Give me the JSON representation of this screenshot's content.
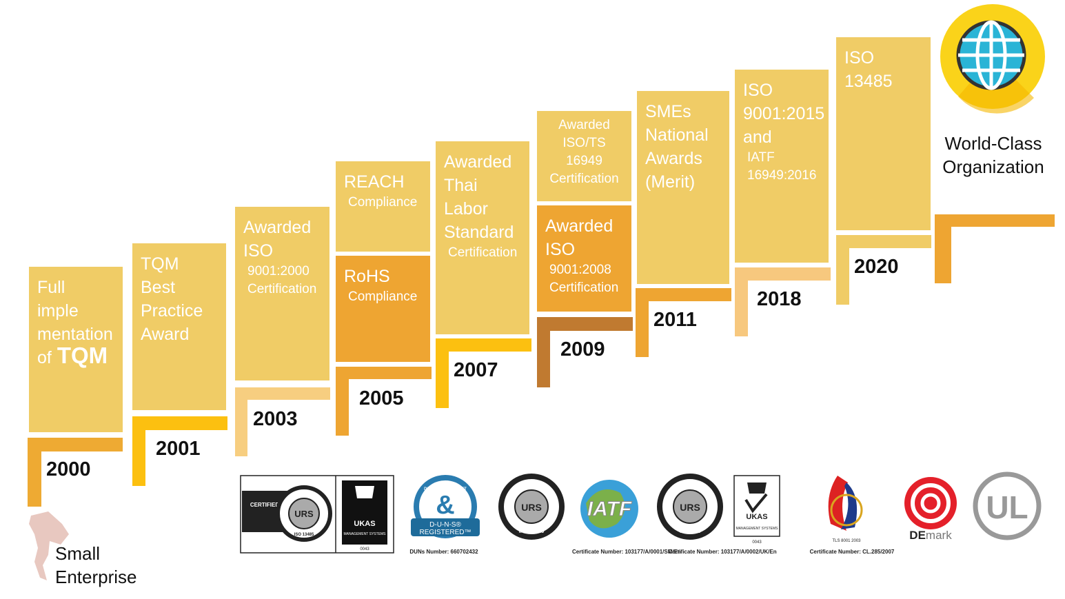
{
  "steps": [
    {
      "year": "2000",
      "boxes": [
        {
          "lines": [
            "Full",
            "imple",
            "mentation",
            "of"
          ],
          "tail": "TQM"
        }
      ]
    },
    {
      "year": "2001",
      "boxes": [
        {
          "lines": [
            "TQM",
            "Best",
            "Practice",
            "Award"
          ]
        }
      ]
    },
    {
      "year": "2003",
      "boxes": [
        {
          "lines": [
            "Awarded",
            "ISO"
          ],
          "sublines": [
            "9001:2000",
            "Certification"
          ]
        }
      ]
    },
    {
      "year": "2005",
      "boxes": [
        {
          "lines": [
            "REACH"
          ],
          "sublines": [
            "Compliance"
          ]
        },
        {
          "lines": [
            "RoHS"
          ],
          "sublines": [
            "Compliance"
          ]
        }
      ]
    },
    {
      "year": "2007",
      "boxes": [
        {
          "lines": [
            "Awarded",
            "Thai",
            "Labor",
            "Standard"
          ],
          "sublines": [
            "Certification"
          ]
        }
      ]
    },
    {
      "year": "2009",
      "boxes": [
        {
          "sublines": [
            "Awarded",
            "ISO/TS",
            "16949",
            "Certification"
          ],
          "align": "center"
        },
        {
          "lines": [
            "Awarded",
            "ISO"
          ],
          "sublines": [
            "9001:2008",
            "Certification"
          ]
        }
      ]
    },
    {
      "year": "2011",
      "boxes": [
        {
          "lines": [
            "SMEs",
            "National",
            "Awards",
            "(Merit)"
          ]
        }
      ]
    },
    {
      "year": "2018",
      "boxes": [
        {
          "lines": [
            "ISO",
            "9001:2015",
            "and"
          ],
          "sublines": [
            "IATF",
            "16949:2016"
          ]
        }
      ]
    },
    {
      "year": "2020",
      "boxes": [
        {
          "lines": [
            "ISO",
            "13485"
          ]
        }
      ]
    }
  ],
  "start": {
    "lines": [
      "Small",
      "Enterprise"
    ]
  },
  "goal": {
    "lines": [
      "World-Class",
      "Organization"
    ]
  },
  "logos": {
    "urs_medical": {
      "badge": "CERTIFIED",
      "ring": "UNITED REGISTRAR OF SYSTEMS",
      "center": "URS",
      "bottom": "ISO 13485"
    },
    "ukas1": {
      "name": "UKAS",
      "sub": "MANAGEMENT SYSTEMS",
      "code": "0043"
    },
    "duns": {
      "ring": "DUN & BRADSTREET",
      "name": "D-U-N-S®",
      "sub": "REGISTERED™",
      "caption": "DUNs Number: 660702432"
    },
    "urs_iatf": {
      "center": "URS",
      "bottom": "IATF 16949",
      "caption": "Certificate Number: 103177/A/0001/SM/En"
    },
    "iatf": {
      "name": "IATF"
    },
    "urs_iso": {
      "center": "URS",
      "bottom": "ISO 9001",
      "caption": "Certificate Number: 103177/A/0002/UK/En"
    },
    "ukas2": {
      "name": "UKAS",
      "sub": "MANAGEMENT SYSTEMS",
      "code": "0043"
    },
    "tls": {
      "sub": "TLS 8001 2003",
      "caption": "Certificate Number: CL.285/2007"
    },
    "demark": {
      "bold": "DE",
      "rest": "mark"
    },
    "ul": {
      "name": "UL"
    }
  }
}
